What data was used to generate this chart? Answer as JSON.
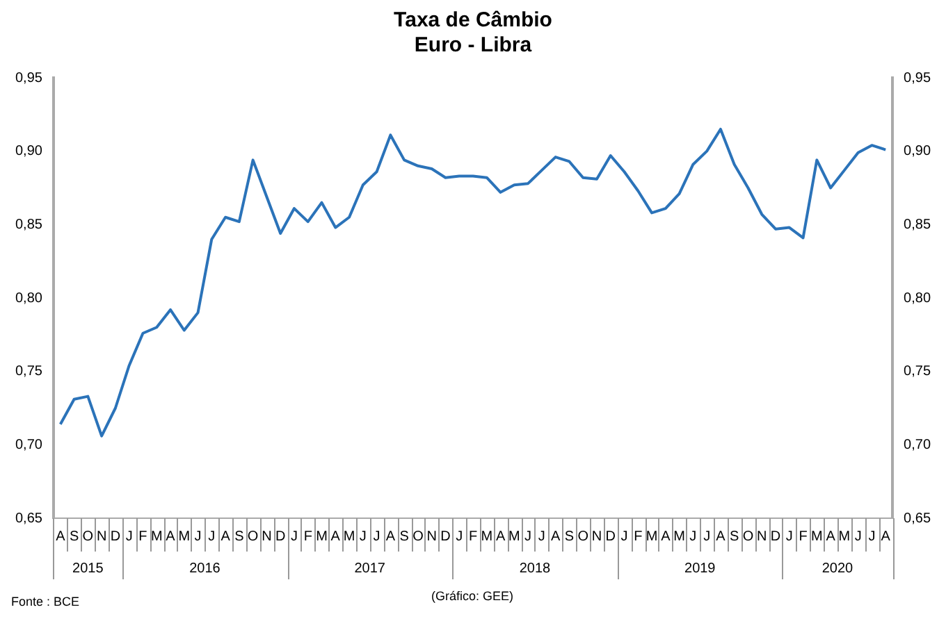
{
  "chart_data": {
    "type": "line",
    "title": "Taxa de Câmbio",
    "subtitle": "Euro - Libra",
    "categories": [
      "A",
      "S",
      "O",
      "N",
      "D",
      "J",
      "F",
      "M",
      "A",
      "M",
      "J",
      "J",
      "A",
      "S",
      "O",
      "N",
      "D",
      "J",
      "F",
      "M",
      "A",
      "M",
      "J",
      "J",
      "A",
      "S",
      "O",
      "N",
      "D",
      "J",
      "F",
      "M",
      "A",
      "M",
      "J",
      "J",
      "A",
      "S",
      "O",
      "N",
      "D",
      "J",
      "F",
      "M",
      "A",
      "M",
      "J",
      "J",
      "A",
      "S",
      "O",
      "N",
      "D",
      "J",
      "F",
      "M",
      "A",
      "M",
      "J",
      "J",
      "A"
    ],
    "series": [
      {
        "color": "#2b73b9",
        "values": [
          0.714,
          0.731,
          0.733,
          0.706,
          0.725,
          0.754,
          0.776,
          0.78,
          0.792,
          0.778,
          0.79,
          0.84,
          0.855,
          0.852,
          0.894,
          0.869,
          0.844,
          0.861,
          0.852,
          0.865,
          0.848,
          0.855,
          0.877,
          0.886,
          0.911,
          0.894,
          0.89,
          0.888,
          0.882,
          0.883,
          0.883,
          0.882,
          0.872,
          0.877,
          0.878,
          0.887,
          0.896,
          0.893,
          0.882,
          0.881,
          0.897,
          0.886,
          0.873,
          0.858,
          0.861,
          0.871,
          0.891,
          0.9,
          0.915,
          0.891,
          0.875,
          0.857,
          0.847,
          0.848,
          0.841,
          0.894,
          0.875,
          0.887,
          0.899,
          0.904,
          0.901
        ]
      }
    ],
    "ylim": [
      0.65,
      0.95
    ],
    "yticks": [
      {
        "value": 0.65,
        "label": "0,65"
      },
      {
        "value": 0.7,
        "label": "0,70"
      },
      {
        "value": 0.75,
        "label": "0,75"
      },
      {
        "value": 0.8,
        "label": "0,80"
      },
      {
        "value": 0.85,
        "label": "0,85"
      },
      {
        "value": 0.9,
        "label": "0,90"
      },
      {
        "value": 0.95,
        "label": "0,95"
      }
    ],
    "y2lim": [
      0.65,
      0.95
    ],
    "y2ticks": [
      {
        "value": 0.65,
        "label": "0,65"
      },
      {
        "value": 0.7,
        "label": "0,70"
      },
      {
        "value": 0.75,
        "label": "0,75"
      },
      {
        "value": 0.8,
        "label": "0,80"
      },
      {
        "value": 0.85,
        "label": "0,85"
      },
      {
        "value": 0.9,
        "label": "0,90"
      },
      {
        "value": 0.95,
        "label": "0,95"
      }
    ],
    "marker": "none",
    "line_style": "solid",
    "legend": false,
    "annotations": [
      "2015",
      "2016",
      "2017",
      "2018",
      "2019",
      "2020",
      "Fonte : BCE",
      "(Gráfico:  GEE)"
    ]
  }
}
